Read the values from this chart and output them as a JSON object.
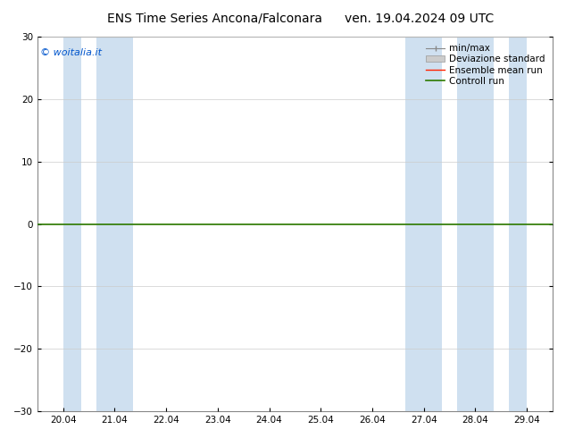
{
  "title_left": "ENS Time Series Ancona/Falconara",
  "title_right": "ven. 19.04.2024 09 UTC",
  "watermark": "© woitalia.it",
  "ylim": [
    -30,
    30
  ],
  "yticks": [
    -30,
    -20,
    -10,
    0,
    10,
    20,
    30
  ],
  "xtick_labels": [
    "20.04",
    "21.04",
    "22.04",
    "23.04",
    "24.04",
    "25.04",
    "26.04",
    "27.04",
    "28.04",
    "29.04"
  ],
  "num_xticks": 10,
  "xlim_start": 0.0,
  "xlim_end": 9.0,
  "shaded_bands": [
    [
      0.0,
      0.35
    ],
    [
      0.65,
      1.35
    ],
    [
      6.65,
      7.35
    ],
    [
      7.65,
      8.35
    ],
    [
      8.65,
      9.0
    ]
  ],
  "band_color": "#cfe0f0",
  "controll_run_color": "#2d7a00",
  "ensemble_mean_color": "#ff2200",
  "bg_color": "#ffffff",
  "plot_bg_color": "#ffffff",
  "title_fontsize": 10,
  "tick_fontsize": 7.5,
  "legend_fontsize": 7.5,
  "watermark_color": "#0055cc",
  "watermark_fontsize": 8,
  "spine_color": "#888888",
  "grid_color": "#cccccc",
  "zero_line_color": "#1a6600"
}
